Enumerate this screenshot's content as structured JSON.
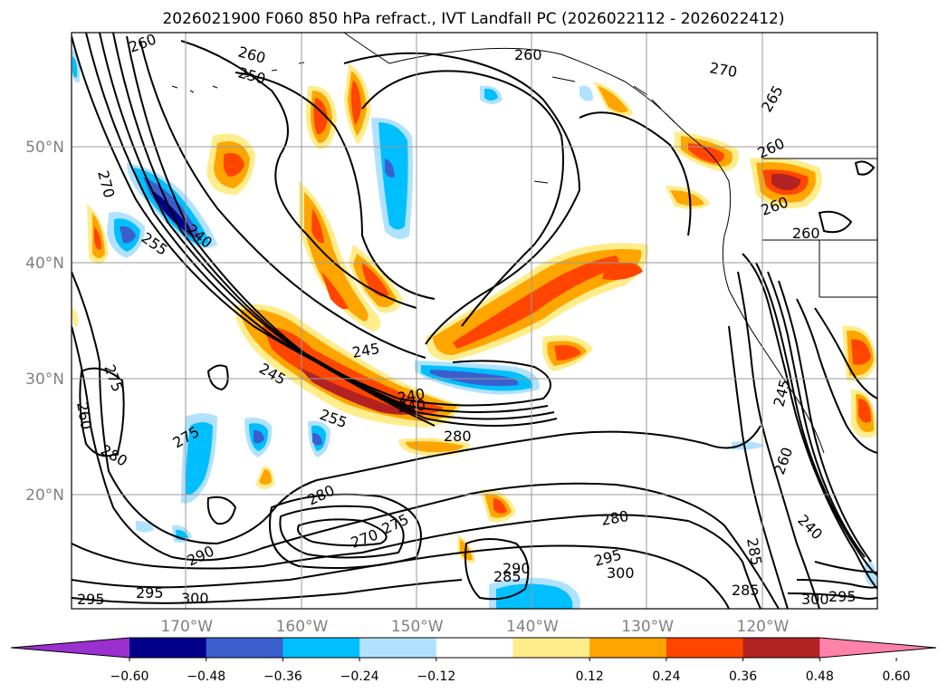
{
  "title": "2026021900 F060 850 hPa refract., IVT Landfall PC (2026022112 - 2026022412)",
  "lat_labels": [
    {
      "text": "50°N",
      "lat": 50
    },
    {
      "text": "40°N",
      "lat": 40
    },
    {
      "text": "30°N",
      "lat": 30
    },
    {
      "text": "20°N",
      "lat": 20
    }
  ],
  "lon_labels": [
    {
      "text": "170°W",
      "lon": -170
    },
    {
      "text": "160°W",
      "lon": -160
    },
    {
      "text": "150°W",
      "lon": -150
    },
    {
      "text": "140°W",
      "lon": -140
    },
    {
      "text": "130°W",
      "lon": -130
    },
    {
      "text": "120°W",
      "lon": -120
    }
  ],
  "colorbar": {
    "ticks": [
      "−0.60",
      "−0.48",
      "−0.36",
      "−0.24",
      "−0.12",
      "0.12",
      "0.24",
      "0.36",
      "0.48",
      "0.60"
    ],
    "colors": [
      "#9b30d0",
      "#00008b",
      "#3a5fcd",
      "#00bfff",
      "#b0e2ff",
      "#ffffff",
      "#ffec8b",
      "#ffa500",
      "#ff4500",
      "#b22222",
      "#ff82ab"
    ]
  },
  "contour_labels": [
    "260",
    "260",
    "250",
    "260",
    "270",
    "265",
    "260",
    "260",
    "260",
    "270",
    "255",
    "240",
    "245",
    "240",
    "245",
    "255",
    "275",
    "260",
    "280",
    "275",
    "280",
    "240",
    "280",
    "270",
    "275",
    "280",
    "290",
    "295",
    "300",
    "295",
    "295",
    "300",
    "285",
    "285",
    "290",
    "300",
    "295",
    "260",
    "240",
    "245",
    "285"
  ]
}
